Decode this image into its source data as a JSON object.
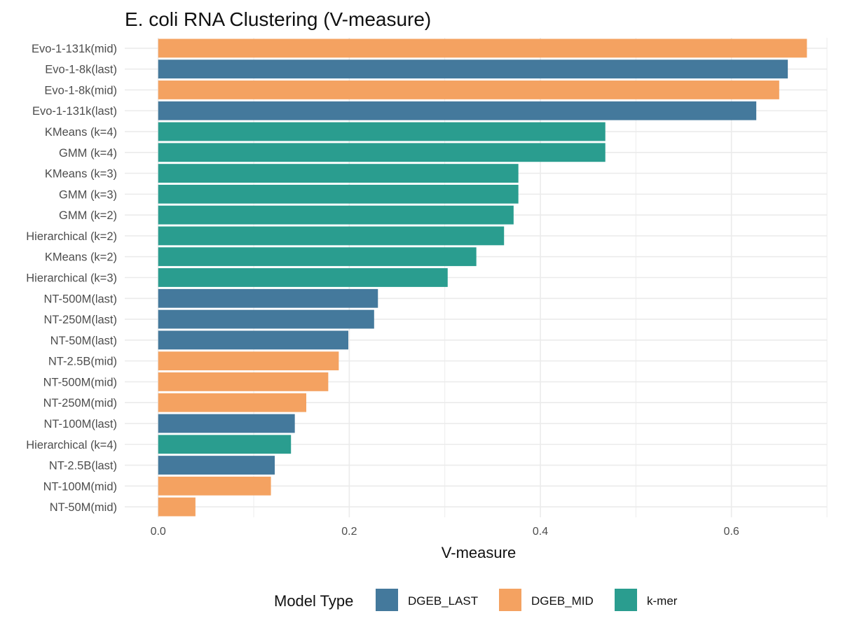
{
  "chart_data": {
    "type": "bar",
    "orientation": "horizontal",
    "title": "E. coli RNA Clustering (V-measure)",
    "xlabel": "V-measure",
    "ylabel": "",
    "xlim": [
      -0.035,
      0.7
    ],
    "xticks": [
      0.0,
      0.2,
      0.4,
      0.6
    ],
    "xtick_labels": [
      "0.0",
      "0.2",
      "0.4",
      "0.6"
    ],
    "grid": true,
    "legend": {
      "title": "Model Type",
      "position": "bottom",
      "entries": [
        {
          "name": "DGEB_LAST",
          "color": "#44799C"
        },
        {
          "name": "DGEB_MID",
          "color": "#F4A261"
        },
        {
          "name": "k-mer",
          "color": "#2A9D8F"
        }
      ]
    },
    "bars": [
      {
        "category": "Evo-1-131k(mid)",
        "value": 0.679,
        "group": "DGEB_MID"
      },
      {
        "category": "Evo-1-8k(last)",
        "value": 0.659,
        "group": "DGEB_LAST"
      },
      {
        "category": "Evo-1-8k(mid)",
        "value": 0.65,
        "group": "DGEB_MID"
      },
      {
        "category": "Evo-1-131k(last)",
        "value": 0.626,
        "group": "DGEB_LAST"
      },
      {
        "category": "KMeans (k=4)",
        "value": 0.468,
        "group": "k-mer"
      },
      {
        "category": "GMM (k=4)",
        "value": 0.468,
        "group": "k-mer"
      },
      {
        "category": "KMeans (k=3)",
        "value": 0.377,
        "group": "k-mer"
      },
      {
        "category": "GMM (k=3)",
        "value": 0.377,
        "group": "k-mer"
      },
      {
        "category": "GMM (k=2)",
        "value": 0.372,
        "group": "k-mer"
      },
      {
        "category": "Hierarchical (k=2)",
        "value": 0.362,
        "group": "k-mer"
      },
      {
        "category": "KMeans (k=2)",
        "value": 0.333,
        "group": "k-mer"
      },
      {
        "category": "Hierarchical (k=3)",
        "value": 0.303,
        "group": "k-mer"
      },
      {
        "category": "NT-500M(last)",
        "value": 0.23,
        "group": "DGEB_LAST"
      },
      {
        "category": "NT-250M(last)",
        "value": 0.226,
        "group": "DGEB_LAST"
      },
      {
        "category": "NT-50M(last)",
        "value": 0.199,
        "group": "DGEB_LAST"
      },
      {
        "category": "NT-2.5B(mid)",
        "value": 0.189,
        "group": "DGEB_MID"
      },
      {
        "category": "NT-500M(mid)",
        "value": 0.178,
        "group": "DGEB_MID"
      },
      {
        "category": "NT-250M(mid)",
        "value": 0.155,
        "group": "DGEB_MID"
      },
      {
        "category": "NT-100M(last)",
        "value": 0.143,
        "group": "DGEB_LAST"
      },
      {
        "category": "Hierarchical (k=4)",
        "value": 0.139,
        "group": "k-mer"
      },
      {
        "category": "NT-2.5B(last)",
        "value": 0.122,
        "group": "DGEB_LAST"
      },
      {
        "category": "NT-100M(mid)",
        "value": 0.118,
        "group": "DGEB_MID"
      },
      {
        "category": "NT-50M(mid)",
        "value": 0.039,
        "group": "DGEB_MID"
      }
    ]
  }
}
